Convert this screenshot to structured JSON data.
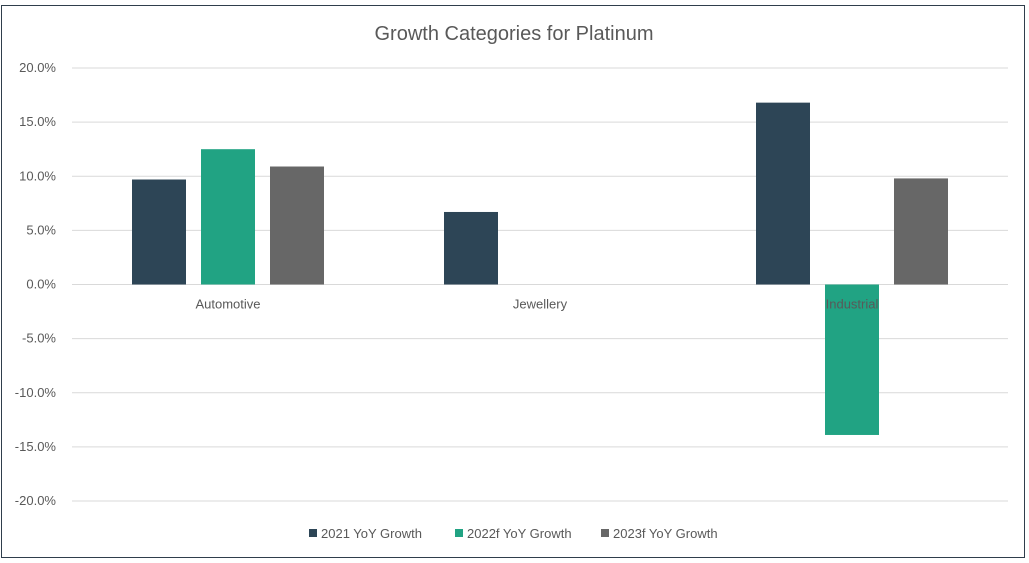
{
  "chart_data": {
    "type": "bar",
    "title": "Growth Categories for Platinum",
    "xlabel": "",
    "ylabel": "",
    "categories": [
      "Automotive",
      "Jewellery",
      "Industrial"
    ],
    "series": [
      {
        "name": "2021 YoY Growth",
        "color": "#2d4556",
        "values": [
          9.7,
          6.7,
          16.8
        ]
      },
      {
        "name": "2022f YoY Growth",
        "color": "#21a383",
        "values": [
          12.5,
          null,
          -13.9
        ]
      },
      {
        "name": "2023f YoY Growth",
        "color": "#676767",
        "values": [
          10.9,
          null,
          9.8
        ]
      }
    ],
    "ylim": [
      -20,
      20
    ],
    "yticks": [
      20,
      15,
      10,
      5,
      0,
      -5,
      -10,
      -15,
      -20
    ],
    "ytick_labels": [
      "20.0%",
      "15.0%",
      "10.0%",
      "5.0%",
      "0.0%",
      "-5.0%",
      "-10.0%",
      "-15.0%",
      "-20.0%"
    ],
    "grid": true,
    "legend_position": "bottom"
  }
}
